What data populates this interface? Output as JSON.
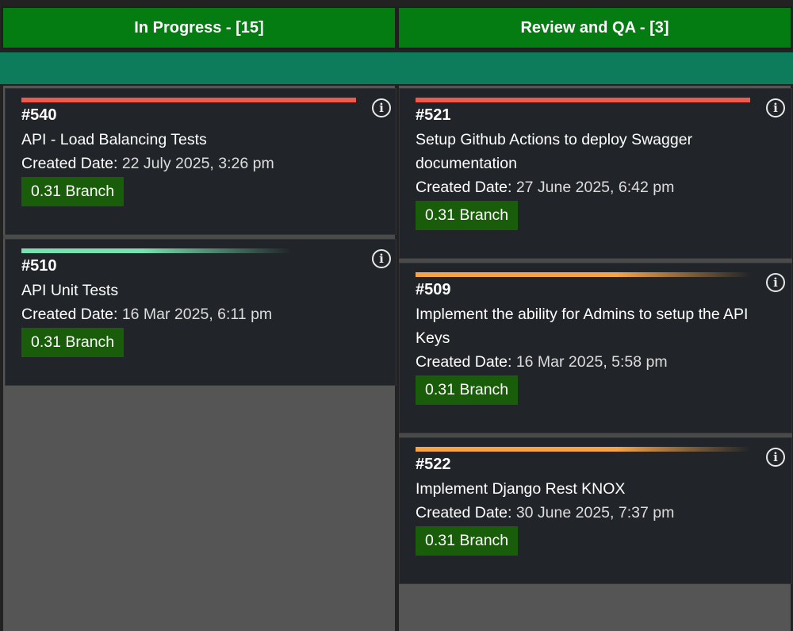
{
  "columns": [
    {
      "header": "In Progress - [15]",
      "cards": [
        {
          "id": "#540",
          "title": "API - Load Balancing Tests",
          "date_label": "Created Date:",
          "date_value": "22 July 2025, 3:26 pm",
          "branch": "0.31 Branch",
          "priority_color": "#ef5a4c"
        },
        {
          "id": "#510",
          "title": "API Unit Tests",
          "date_label": "Created Date:",
          "date_value": "16 Mar 2025, 6:11 pm",
          "branch": "0.31 Branch",
          "priority_color": "#78e0ad"
        }
      ]
    },
    {
      "header": "Review and QA - [3]",
      "cards": [
        {
          "id": "#521",
          "title": "Setup Github Actions to deploy Swagger documentation",
          "date_label": "Created Date:",
          "date_value": "27 June 2025, 6:42 pm",
          "branch": "0.31 Branch",
          "priority_color": "#ef5a4c"
        },
        {
          "id": "#509",
          "title": "Implement the ability for Admins to setup the API Keys",
          "date_label": "Created Date:",
          "date_value": "16 Mar 2025, 5:58 pm",
          "branch": "0.31 Branch",
          "priority_color": "#f5a44a"
        },
        {
          "id": "#522",
          "title": "Implement Django Rest KNOX",
          "date_label": "Created Date:",
          "date_value": "30 June 2025, 7:37 pm",
          "branch": "0.31 Branch",
          "priority_color": "#f5a44a"
        }
      ]
    }
  ],
  "icons": {
    "info": "info-circle-icon",
    "info_glyph": "i"
  },
  "colors": {
    "header_green": "#047c12",
    "teal_band": "#0d7c5a",
    "card_bg": "#212529",
    "branch_green": "#195c0a",
    "column_bg": "#555555"
  }
}
